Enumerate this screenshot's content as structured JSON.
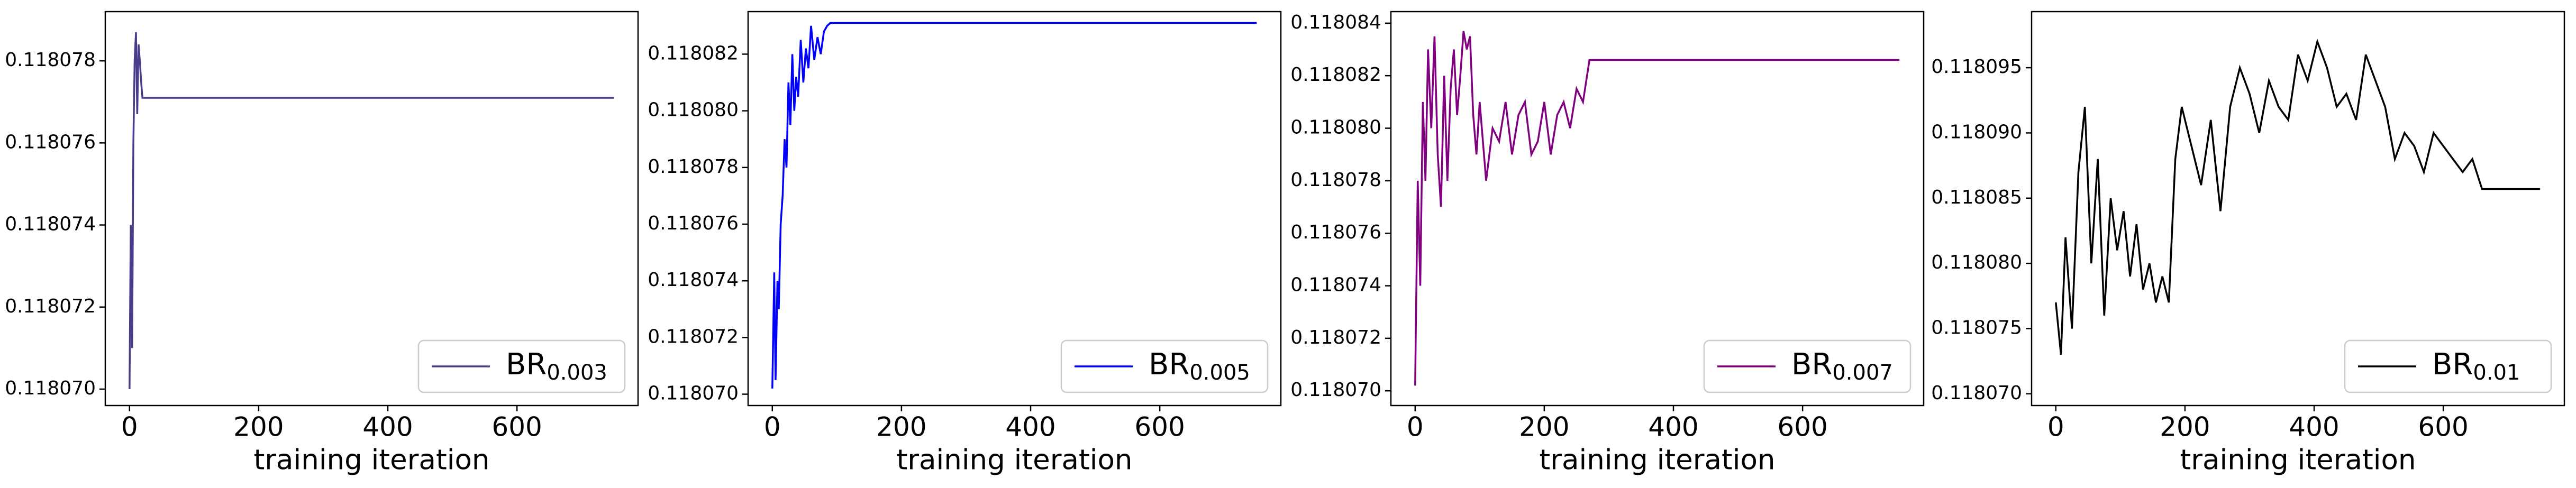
{
  "chart_data": [
    {
      "type": "line",
      "xlabel": "training iteration",
      "legend": "lower right",
      "x": [
        0,
        2,
        4,
        6,
        8,
        10,
        12,
        14,
        16,
        18,
        20,
        25,
        750
      ],
      "series": [
        {
          "name": "BR",
          "name_subscript": "0.003",
          "color": "#483d8b",
          "values": [
            0.11807,
            0.118074,
            0.118071,
            0.118076,
            0.118078,
            0.1180787,
            0.1180767,
            0.1180784,
            0.118078,
            0.1180775,
            0.1180771,
            0.1180771,
            0.1180771
          ]
        }
      ],
      "xlim": [
        -37.5,
        787.5
      ],
      "xticks": [
        0,
        200,
        400,
        600
      ],
      "ylim": [
        0.1180696,
        0.1180792
      ],
      "yticks": [
        {
          "value": 0.11807,
          "label": "0.118070"
        },
        {
          "value": 0.118072,
          "label": "0.118072"
        },
        {
          "value": 0.118074,
          "label": "0.118074"
        },
        {
          "value": 0.118076,
          "label": "0.118076"
        },
        {
          "value": 0.118078,
          "label": "0.118078"
        }
      ]
    },
    {
      "type": "line",
      "xlabel": "training iteration",
      "legend": "lower right",
      "x": [
        0,
        3,
        5,
        8,
        10,
        13,
        16,
        19,
        22,
        25,
        28,
        31,
        34,
        37,
        40,
        44,
        48,
        52,
        56,
        60,
        65,
        70,
        75,
        80,
        85,
        90,
        750
      ],
      "series": [
        {
          "name": "BR",
          "name_subscript": "0.005",
          "color": "#0000ff",
          "values": [
            0.1180702,
            0.1180743,
            0.1180705,
            0.118074,
            0.118073,
            0.118076,
            0.118077,
            0.118079,
            0.118078,
            0.118081,
            0.1180795,
            0.118082,
            0.11808,
            0.1180812,
            0.1180805,
            0.1180825,
            0.118081,
            0.1180822,
            0.1180815,
            0.118083,
            0.1180818,
            0.1180826,
            0.118082,
            0.1180828,
            0.118083,
            0.1180831,
            0.1180831
          ]
        }
      ],
      "xlim": [
        -37.5,
        787.5
      ],
      "xticks": [
        0,
        200,
        400,
        600
      ],
      "ylim": [
        0.1180696,
        0.1180835
      ],
      "yticks": [
        {
          "value": 0.11807,
          "label": "0.118070"
        },
        {
          "value": 0.118072,
          "label": "0.118072"
        },
        {
          "value": 0.118074,
          "label": "0.118074"
        },
        {
          "value": 0.118076,
          "label": "0.118076"
        },
        {
          "value": 0.118078,
          "label": "0.118078"
        },
        {
          "value": 0.11808,
          "label": "0.118080"
        },
        {
          "value": 0.118082,
          "label": "0.118082"
        }
      ]
    },
    {
      "type": "line",
      "xlabel": "training iteration",
      "legend": "lower right",
      "x": [
        0,
        4,
        8,
        12,
        16,
        20,
        25,
        30,
        35,
        40,
        45,
        50,
        55,
        60,
        65,
        70,
        75,
        80,
        85,
        90,
        95,
        100,
        110,
        120,
        130,
        140,
        150,
        160,
        170,
        180,
        190,
        200,
        210,
        220,
        230,
        240,
        250,
        260,
        270,
        750
      ],
      "series": [
        {
          "name": "BR",
          "name_subscript": "0.007",
          "color": "#800080",
          "values": [
            0.1180702,
            0.118078,
            0.118074,
            0.118081,
            0.118078,
            0.118083,
            0.11808,
            0.1180835,
            0.118079,
            0.118077,
            0.118082,
            0.118078,
            0.1180815,
            0.118083,
            0.1180805,
            0.118082,
            0.1180837,
            0.118083,
            0.1180835,
            0.1180805,
            0.118079,
            0.118081,
            0.118078,
            0.11808,
            0.1180795,
            0.118081,
            0.118079,
            0.1180805,
            0.118081,
            0.118079,
            0.1180795,
            0.118081,
            0.118079,
            0.1180805,
            0.118081,
            0.11808,
            0.1180815,
            0.118081,
            0.1180826,
            0.1180826
          ]
        }
      ],
      "xlim": [
        -37.5,
        787.5
      ],
      "xticks": [
        0,
        200,
        400,
        600
      ],
      "ylim": [
        0.11806944,
        0.11808444
      ],
      "yticks": [
        {
          "value": 0.11807,
          "label": "0.118070"
        },
        {
          "value": 0.118072,
          "label": "0.118072"
        },
        {
          "value": 0.118074,
          "label": "0.118074"
        },
        {
          "value": 0.118076,
          "label": "0.118076"
        },
        {
          "value": 0.118078,
          "label": "0.118078"
        },
        {
          "value": 0.11808,
          "label": "0.118080"
        },
        {
          "value": 0.118082,
          "label": "0.118082"
        },
        {
          "value": 0.118084,
          "label": "0.118084"
        }
      ]
    },
    {
      "type": "line",
      "xlabel": "training iteration",
      "legend": "lower right",
      "x": [
        0,
        8,
        15,
        25,
        35,
        45,
        55,
        65,
        75,
        85,
        95,
        105,
        115,
        125,
        135,
        145,
        155,
        165,
        175,
        185,
        195,
        210,
        225,
        240,
        255,
        270,
        285,
        300,
        315,
        330,
        345,
        360,
        375,
        390,
        405,
        420,
        435,
        450,
        465,
        480,
        495,
        510,
        525,
        540,
        555,
        570,
        585,
        600,
        615,
        630,
        645,
        660,
        750
      ],
      "series": [
        {
          "name": "BR",
          "name_subscript": "0.01",
          "color": "#000000",
          "values": [
            0.118077,
            0.118073,
            0.118082,
            0.118075,
            0.118087,
            0.118092,
            0.11808,
            0.118088,
            0.118076,
            0.118085,
            0.118081,
            0.118084,
            0.118079,
            0.118083,
            0.118078,
            0.11808,
            0.118077,
            0.118079,
            0.118077,
            0.118088,
            0.118092,
            0.118089,
            0.118086,
            0.118091,
            0.118084,
            0.118092,
            0.118095,
            0.118093,
            0.11809,
            0.118094,
            0.118092,
            0.118091,
            0.118096,
            0.118094,
            0.118097,
            0.118095,
            0.118092,
            0.118093,
            0.118091,
            0.118096,
            0.118094,
            0.118092,
            0.118088,
            0.11809,
            0.118089,
            0.118087,
            0.11809,
            0.118089,
            0.118088,
            0.118087,
            0.118088,
            0.1180857,
            0.1180857
          ]
        }
      ],
      "xlim": [
        -37.5,
        787.5
      ],
      "xticks": [
        0,
        200,
        400,
        600
      ],
      "ylim": [
        0.1180691,
        0.1180993
      ],
      "yticks": [
        {
          "value": 0.11807,
          "label": "0.118070"
        },
        {
          "value": 0.118075,
          "label": "0.118075"
        },
        {
          "value": 0.11808,
          "label": "0.118080"
        },
        {
          "value": 0.118085,
          "label": "0.118085"
        },
        {
          "value": 0.11809,
          "label": "0.118090"
        },
        {
          "value": 0.118095,
          "label": "0.118095"
        }
      ]
    }
  ]
}
